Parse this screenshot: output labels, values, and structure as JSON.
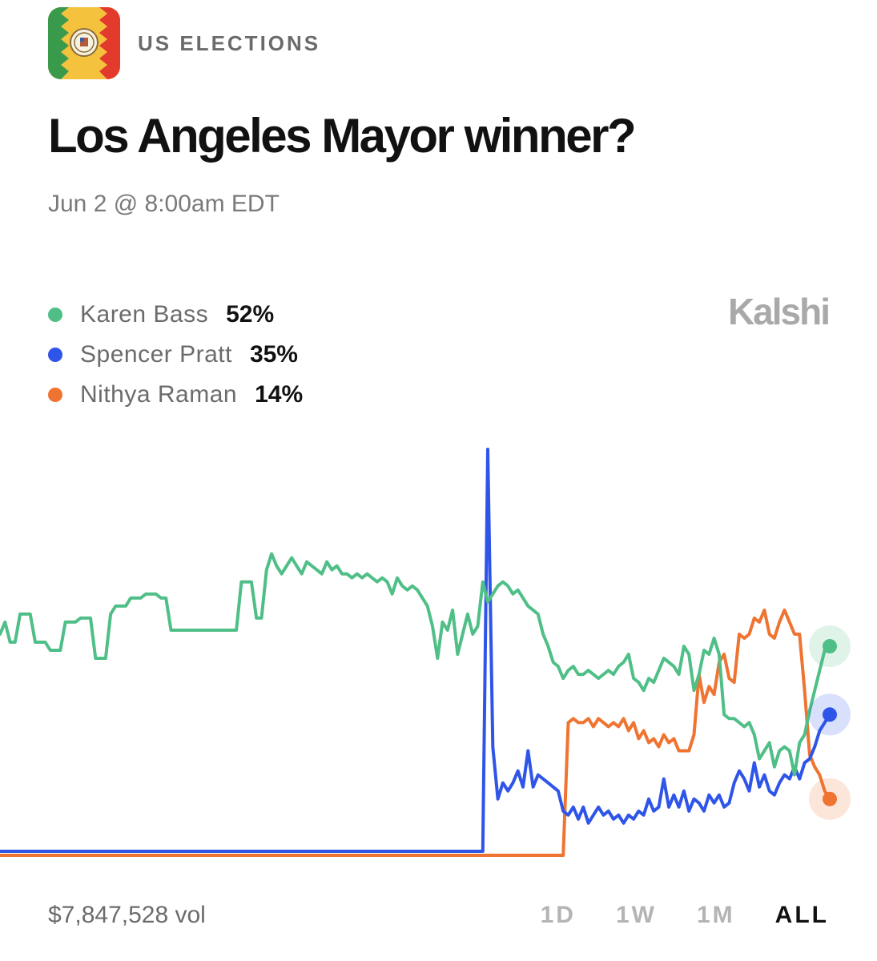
{
  "header": {
    "category": "US ELECTIONS",
    "icon": "los-angeles-flag-seal-icon"
  },
  "title": "Los Angeles Mayor winner?",
  "subtitle": "Jun 2 @ 8:00am EDT",
  "brand": "Kalshi",
  "legend": [
    {
      "name": "Karen Bass",
      "value": "52%",
      "color": "#4fbf87"
    },
    {
      "name": "Spencer Pratt",
      "value": "35%",
      "color": "#2f55e8"
    },
    {
      "name": "Nithya Raman",
      "value": "14%",
      "color": "#ef7431"
    }
  ],
  "footer": {
    "volume": "$7,847,528 vol",
    "ranges": [
      "1D",
      "1W",
      "1M",
      "ALL"
    ],
    "active_range": "ALL"
  },
  "chart_data": {
    "type": "line",
    "x_unit": "time index (all-time, unlabeled axis)",
    "ylim": [
      0,
      100
    ],
    "grid": false,
    "legend_position": "top-left",
    "series": [
      {
        "name": "Karen Bass",
        "color": "#4fbf87",
        "last": 52,
        "points": [
          [
            0,
            55
          ],
          [
            1,
            58
          ],
          [
            2,
            53
          ],
          [
            3,
            53
          ],
          [
            4,
            60
          ],
          [
            6,
            60
          ],
          [
            7,
            53
          ],
          [
            9,
            53
          ],
          [
            10,
            51
          ],
          [
            12,
            51
          ],
          [
            13,
            58
          ],
          [
            15,
            58
          ],
          [
            16,
            59
          ],
          [
            18,
            59
          ],
          [
            19,
            49
          ],
          [
            21,
            49
          ],
          [
            22,
            60
          ],
          [
            23,
            62
          ],
          [
            25,
            62
          ],
          [
            26,
            64
          ],
          [
            28,
            64
          ],
          [
            29,
            65
          ],
          [
            31,
            65
          ],
          [
            32,
            64
          ],
          [
            33,
            64
          ],
          [
            34,
            56
          ],
          [
            36,
            56
          ],
          [
            38,
            56
          ],
          [
            40,
            56
          ],
          [
            42,
            56
          ],
          [
            44,
            56
          ],
          [
            46,
            56
          ],
          [
            47,
            56
          ],
          [
            48,
            68
          ],
          [
            50,
            68
          ],
          [
            51,
            59
          ],
          [
            52,
            59
          ],
          [
            53,
            71
          ],
          [
            54,
            75
          ],
          [
            55,
            72
          ],
          [
            56,
            70
          ],
          [
            57,
            72
          ],
          [
            58,
            74
          ],
          [
            59,
            72
          ],
          [
            60,
            70
          ],
          [
            61,
            73
          ],
          [
            62,
            72
          ],
          [
            63,
            71
          ],
          [
            64,
            70
          ],
          [
            65,
            73
          ],
          [
            66,
            71
          ],
          [
            67,
            72
          ],
          [
            68,
            70
          ],
          [
            69,
            70
          ],
          [
            70,
            69
          ],
          [
            71,
            70
          ],
          [
            72,
            69
          ],
          [
            73,
            70
          ],
          [
            74,
            69
          ],
          [
            75,
            68
          ],
          [
            76,
            69
          ],
          [
            77,
            68
          ],
          [
            78,
            65
          ],
          [
            79,
            69
          ],
          [
            80,
            67
          ],
          [
            81,
            66
          ],
          [
            82,
            67
          ],
          [
            83,
            66
          ],
          [
            84,
            64
          ],
          [
            85,
            62
          ],
          [
            86,
            57
          ],
          [
            87,
            49
          ],
          [
            88,
            58
          ],
          [
            89,
            56
          ],
          [
            90,
            61
          ],
          [
            91,
            50
          ],
          [
            92,
            55
          ],
          [
            93,
            60
          ],
          [
            94,
            55
          ],
          [
            95,
            57
          ],
          [
            96,
            68
          ],
          [
            97,
            63
          ],
          [
            98,
            65
          ],
          [
            99,
            67
          ],
          [
            100,
            68
          ],
          [
            101,
            67
          ],
          [
            102,
            65
          ],
          [
            103,
            66
          ],
          [
            104,
            64
          ],
          [
            105,
            62
          ],
          [
            106,
            61
          ],
          [
            107,
            60
          ],
          [
            108,
            55
          ],
          [
            109,
            52
          ],
          [
            110,
            48
          ],
          [
            111,
            47
          ],
          [
            112,
            44
          ],
          [
            113,
            46
          ],
          [
            114,
            47
          ],
          [
            115,
            45
          ],
          [
            116,
            45
          ],
          [
            117,
            46
          ],
          [
            118,
            45
          ],
          [
            119,
            44
          ],
          [
            120,
            45
          ],
          [
            121,
            46
          ],
          [
            122,
            45
          ],
          [
            123,
            47
          ],
          [
            124,
            48
          ],
          [
            125,
            50
          ],
          [
            126,
            44
          ],
          [
            127,
            43
          ],
          [
            128,
            41
          ],
          [
            129,
            44
          ],
          [
            130,
            43
          ],
          [
            131,
            46
          ],
          [
            132,
            49
          ],
          [
            133,
            48
          ],
          [
            134,
            47
          ],
          [
            135,
            45
          ],
          [
            136,
            52
          ],
          [
            137,
            50
          ],
          [
            138,
            41
          ],
          [
            139,
            45
          ],
          [
            140,
            51
          ],
          [
            141,
            50
          ],
          [
            142,
            54
          ],
          [
            143,
            50
          ],
          [
            144,
            35
          ],
          [
            145,
            34
          ],
          [
            146,
            34
          ],
          [
            147,
            33
          ],
          [
            148,
            32
          ],
          [
            149,
            33
          ],
          [
            150,
            30
          ],
          [
            151,
            24
          ],
          [
            152,
            26
          ],
          [
            153,
            28
          ],
          [
            154,
            22
          ],
          [
            155,
            26
          ],
          [
            156,
            27
          ],
          [
            157,
            26
          ],
          [
            158,
            20
          ],
          [
            159,
            28
          ],
          [
            160,
            30
          ],
          [
            161,
            36
          ],
          [
            162,
            41
          ],
          [
            163,
            46
          ],
          [
            164,
            51
          ],
          [
            165,
            52
          ]
        ]
      },
      {
        "name": "Spencer Pratt",
        "color": "#2f55e8",
        "last": 35,
        "points": [
          [
            0,
            1
          ],
          [
            20,
            1
          ],
          [
            40,
            1
          ],
          [
            60,
            1
          ],
          [
            80,
            1
          ],
          [
            96,
            1
          ],
          [
            97,
            101
          ],
          [
            98,
            27
          ],
          [
            99,
            14
          ],
          [
            100,
            18
          ],
          [
            101,
            16
          ],
          [
            102,
            18
          ],
          [
            103,
            21
          ],
          [
            104,
            17
          ],
          [
            105,
            26
          ],
          [
            106,
            17
          ],
          [
            107,
            20
          ],
          [
            108,
            19
          ],
          [
            109,
            18
          ],
          [
            110,
            17
          ],
          [
            111,
            16
          ],
          [
            112,
            11
          ],
          [
            113,
            10
          ],
          [
            114,
            12
          ],
          [
            115,
            9
          ],
          [
            116,
            12
          ],
          [
            117,
            8
          ],
          [
            118,
            10
          ],
          [
            119,
            12
          ],
          [
            120,
            10
          ],
          [
            121,
            11
          ],
          [
            122,
            9
          ],
          [
            123,
            10
          ],
          [
            124,
            8
          ],
          [
            125,
            10
          ],
          [
            126,
            9
          ],
          [
            127,
            11
          ],
          [
            128,
            10
          ],
          [
            129,
            14
          ],
          [
            130,
            11
          ],
          [
            131,
            12
          ],
          [
            132,
            19
          ],
          [
            133,
            12
          ],
          [
            134,
            15
          ],
          [
            135,
            12
          ],
          [
            136,
            16
          ],
          [
            137,
            11
          ],
          [
            138,
            14
          ],
          [
            139,
            13
          ],
          [
            140,
            11
          ],
          [
            141,
            15
          ],
          [
            142,
            13
          ],
          [
            143,
            15
          ],
          [
            144,
            12
          ],
          [
            145,
            13
          ],
          [
            146,
            18
          ],
          [
            147,
            21
          ],
          [
            148,
            19
          ],
          [
            149,
            16
          ],
          [
            150,
            23
          ],
          [
            151,
            17
          ],
          [
            152,
            20
          ],
          [
            153,
            16
          ],
          [
            154,
            15
          ],
          [
            155,
            18
          ],
          [
            156,
            20
          ],
          [
            157,
            19
          ],
          [
            158,
            22
          ],
          [
            159,
            19
          ],
          [
            160,
            23
          ],
          [
            161,
            24
          ],
          [
            162,
            27
          ],
          [
            163,
            31
          ],
          [
            164,
            33
          ],
          [
            165,
            35
          ]
        ]
      },
      {
        "name": "Nithya Raman",
        "color": "#ef7431",
        "last": 14,
        "points": [
          [
            0,
            0
          ],
          [
            20,
            0
          ],
          [
            40,
            0
          ],
          [
            60,
            0
          ],
          [
            80,
            0
          ],
          [
            100,
            0
          ],
          [
            112,
            0
          ],
          [
            113,
            33
          ],
          [
            114,
            34
          ],
          [
            115,
            33
          ],
          [
            116,
            33
          ],
          [
            117,
            34
          ],
          [
            118,
            32
          ],
          [
            119,
            34
          ],
          [
            120,
            33
          ],
          [
            121,
            32
          ],
          [
            122,
            33
          ],
          [
            123,
            32
          ],
          [
            124,
            34
          ],
          [
            125,
            31
          ],
          [
            126,
            33
          ],
          [
            127,
            29
          ],
          [
            128,
            31
          ],
          [
            129,
            28
          ],
          [
            130,
            29
          ],
          [
            131,
            27
          ],
          [
            132,
            30
          ],
          [
            133,
            28
          ],
          [
            134,
            29
          ],
          [
            135,
            26
          ],
          [
            136,
            26
          ],
          [
            137,
            26
          ],
          [
            138,
            30
          ],
          [
            139,
            45
          ],
          [
            140,
            38
          ],
          [
            141,
            42
          ],
          [
            142,
            40
          ],
          [
            143,
            48
          ],
          [
            144,
            50
          ],
          [
            145,
            44
          ],
          [
            146,
            43
          ],
          [
            147,
            55
          ],
          [
            148,
            54
          ],
          [
            149,
            55
          ],
          [
            150,
            59
          ],
          [
            151,
            58
          ],
          [
            152,
            61
          ],
          [
            153,
            55
          ],
          [
            154,
            54
          ],
          [
            155,
            58
          ],
          [
            156,
            61
          ],
          [
            157,
            58
          ],
          [
            158,
            55
          ],
          [
            159,
            55
          ],
          [
            160,
            41
          ],
          [
            161,
            25
          ],
          [
            162,
            22
          ],
          [
            163,
            20
          ],
          [
            164,
            16
          ],
          [
            165,
            14
          ]
        ]
      }
    ]
  }
}
